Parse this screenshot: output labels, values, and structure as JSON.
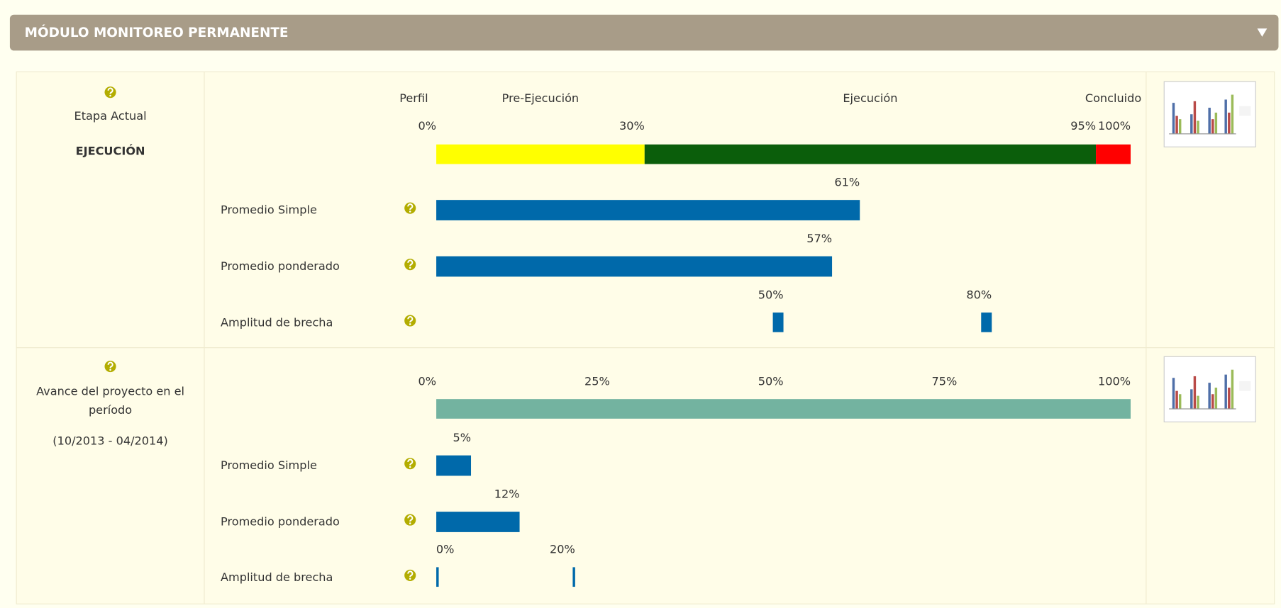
{
  "header": {
    "title": "MÓDULO MONITOREO PERMANENTE"
  },
  "sections": [
    {
      "label": "Etapa Actual",
      "stage": "EJECUCIÓN",
      "phases": [
        "Perfil",
        "Pre-Ejecución",
        "Ejecución",
        "Concluido"
      ],
      "xlim": [
        0,
        100
      ],
      "ticks": [
        {
          "value": 0,
          "label": "0%"
        },
        {
          "value": 30,
          "label": "30%"
        },
        {
          "value": 95,
          "label": "95%"
        },
        {
          "value": 100,
          "label": "100%"
        }
      ],
      "segment_colors": [
        "#ffff00",
        "#0b5e0b",
        "#ff0000"
      ],
      "bar_color": "#0069aa",
      "rows": [
        {
          "name": "Promedio Simple",
          "values": [
            61
          ],
          "value_labels": [
            "61%"
          ],
          "kind": "bar"
        },
        {
          "name": "Promedio ponderado",
          "values": [
            57
          ],
          "value_labels": [
            "57%"
          ],
          "kind": "bar"
        },
        {
          "name": "Amplitud de brecha",
          "values": [
            50,
            80
          ],
          "value_labels": [
            "50%",
            "80%"
          ],
          "kind": "gap"
        }
      ]
    },
    {
      "label_lines": [
        "Avance del proyecto en el",
        "período"
      ],
      "period": "(10/2013 - 04/2014)",
      "xlim": [
        0,
        100
      ],
      "ticks": [
        {
          "value": 0,
          "label": "0%"
        },
        {
          "value": 25,
          "label": "25%"
        },
        {
          "value": 50,
          "label": "50%"
        },
        {
          "value": 75,
          "label": "75%"
        },
        {
          "value": 100,
          "label": "100%"
        }
      ],
      "track_color": "#73b3a0",
      "bar_color": "#0069aa",
      "rows": [
        {
          "name": "Promedio Simple",
          "values": [
            5
          ],
          "value_labels": [
            "5%"
          ],
          "kind": "bar"
        },
        {
          "name": "Promedio ponderado",
          "values": [
            12
          ],
          "value_labels": [
            "12%"
          ],
          "kind": "bar"
        },
        {
          "name": "Amplitud de brecha",
          "values": [
            0,
            20
          ],
          "value_labels": [
            "0%",
            "20%"
          ],
          "kind": "gap"
        }
      ]
    }
  ]
}
